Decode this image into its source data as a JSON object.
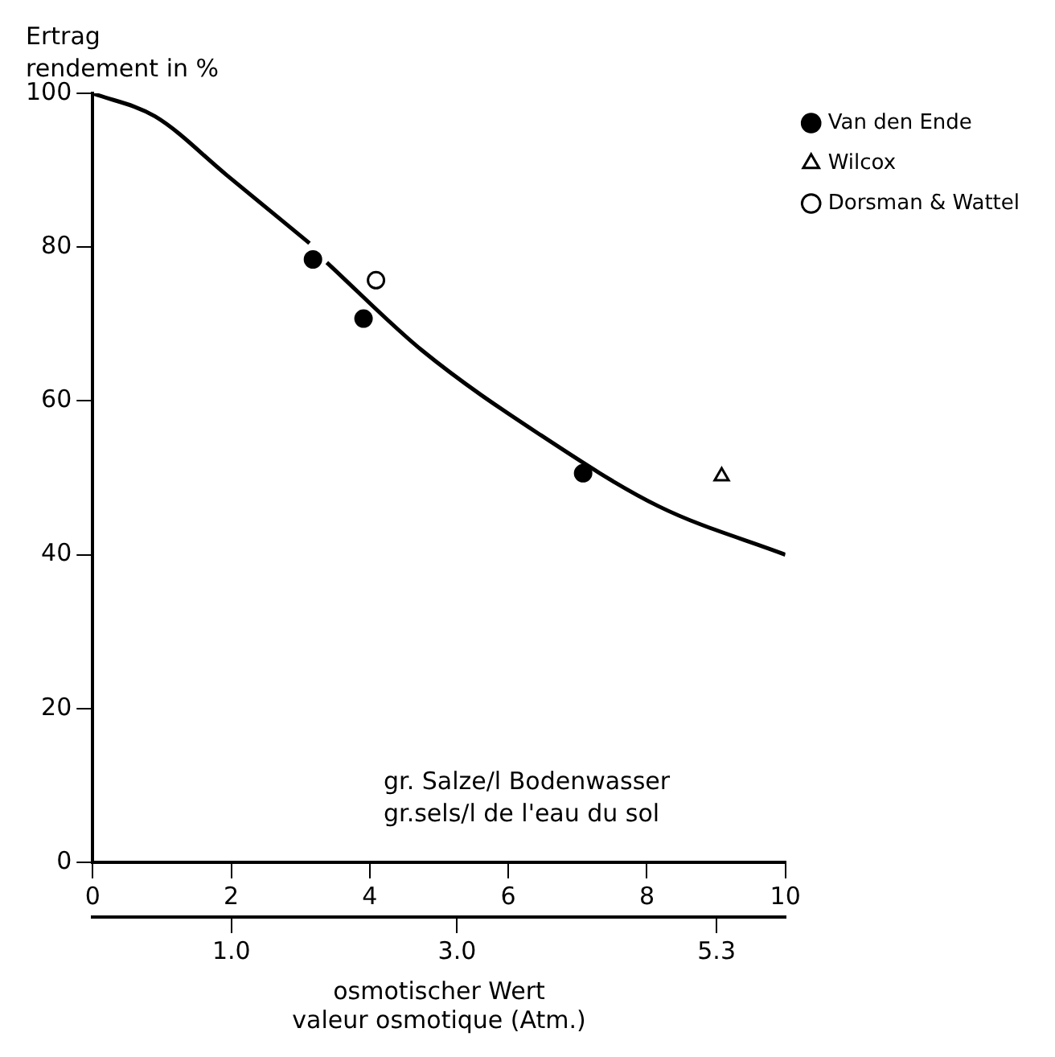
{
  "chart_data": {
    "type": "scatter",
    "ylabel": "Ertrag\nrendement in %",
    "xlabel": "gr. Salze/l Bodenwasser\ngr.sels/l de l'eau du sol",
    "x2label": "osmotischer Wert\nvaleur osmotique (Atm.)",
    "xlim": [
      0,
      10
    ],
    "xticks": [
      0,
      2,
      4,
      6,
      8,
      10
    ],
    "x2lim": [
      -0.23,
      5.91
    ],
    "x2ticks": [
      {
        "value": 1,
        "label": "1.0"
      },
      {
        "value": 3,
        "label": "3.0"
      },
      5.3
    ],
    "ylim": [
      0,
      100
    ],
    "yticks": [
      0,
      20,
      40,
      60,
      80,
      100
    ],
    "grid": false,
    "legend": "top right",
    "series": [
      {
        "type": "line",
        "color": "#000000",
        "marker": "none",
        "line_style": "solid",
        "x": [
          0,
          0.9,
          1.93,
          3.13,
          3.25,
          3.38,
          4.75,
          6.46,
          8.17,
          10
        ],
        "values": [
          100,
          97,
          89.4,
          80.5,
          null,
          78,
          66.6,
          55.6,
          46.3,
          40
        ]
      },
      {
        "name": "Van den Ende",
        "color": "#000000",
        "marker": "circle",
        "x": [
          3.18,
          3.91,
          7.08
        ],
        "values": [
          78.4,
          70.7,
          50.6
        ]
      },
      {
        "name": "Wilcox",
        "color": "#ffffff",
        "marker": "triangle",
        "x": [
          9.08
        ],
        "values": [
          50.2
        ]
      },
      {
        "name": "Dorsman & Wattel",
        "color": "#ffffff",
        "marker": "circle",
        "x": [
          4.09
        ],
        "values": [
          75.7
        ]
      }
    ]
  }
}
